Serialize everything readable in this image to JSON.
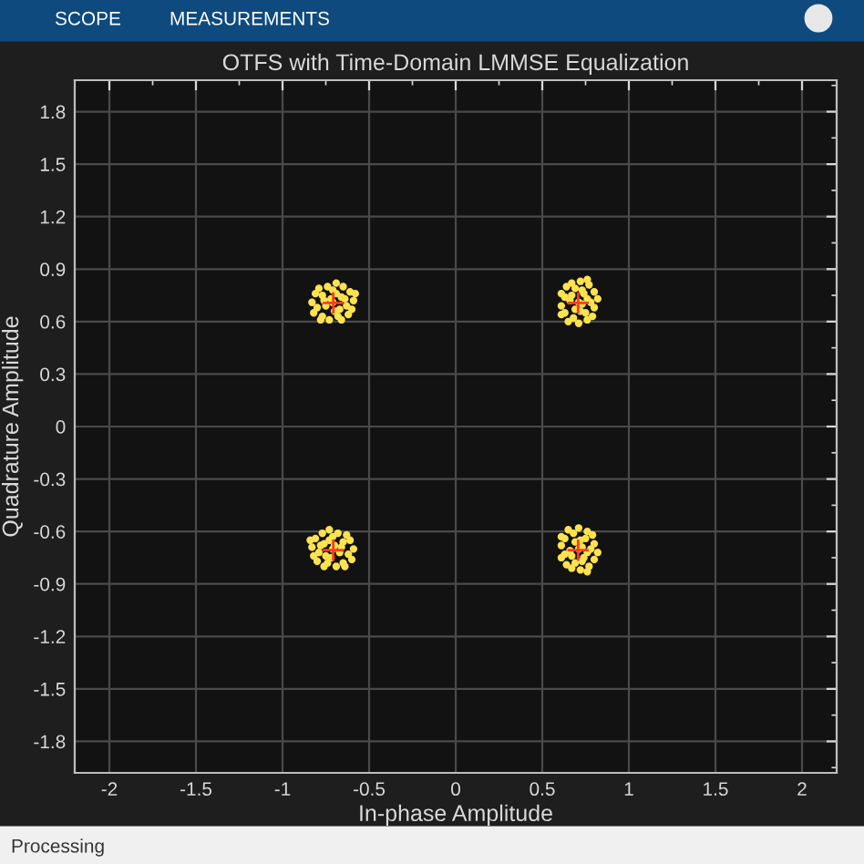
{
  "chart_data": {
    "type": "scatter",
    "title": "OTFS with Time-Domain LMMSE Equalization",
    "xlabel": "In-phase Amplitude",
    "ylabel": "Quadrature Amplitude",
    "annotations": [
      "SCOPE",
      "MEASUREMENTS",
      "Processing"
    ],
    "xlim": [
      -2.2,
      2.2
    ],
    "ylim": [
      -1.98,
      1.98
    ],
    "xticks": [
      -2,
      -1.5,
      -1,
      -0.5,
      0,
      0.5,
      1,
      1.5,
      2
    ],
    "yticks": [
      -1.8,
      -1.5,
      -1.2,
      -0.9,
      -0.6,
      -0.3,
      0,
      0.3,
      0.6,
      0.9,
      1.2,
      1.5,
      1.8
    ],
    "grid": true,
    "legend": false,
    "series": [
      {
        "color": "#fde24f",
        "marker": "circle",
        "x": [
          -0.71,
          -0.66,
          -0.77,
          -0.63,
          -0.8,
          -0.68,
          -0.74,
          -0.61,
          -0.81,
          -0.65,
          -0.77,
          -0.62,
          -0.73,
          -0.59,
          -0.83,
          -0.69,
          -0.67,
          -0.75,
          -0.69,
          -0.76,
          -0.64,
          -0.79,
          -0.66,
          -0.78,
          -0.6,
          -0.82,
          -0.71,
          -0.7,
          -0.72,
          -0.58,
          0.71,
          0.74,
          0.75,
          0.69,
          0.68,
          0.63,
          0.8,
          0.77,
          0.76,
          0.8,
          0.63,
          0.64,
          0.61,
          0.72,
          0.71,
          0.82,
          0.67,
          0.69,
          0.76,
          0.72,
          0.73,
          0.79,
          0.61,
          0.61,
          0.67,
          0.65,
          0.78,
          0.66,
          0.73,
          0.76,
          -0.71,
          -0.76,
          -0.65,
          -0.79,
          -0.62,
          -0.74,
          -0.68,
          -0.81,
          -0.61,
          -0.77,
          -0.65,
          -0.8,
          -0.69,
          -0.83,
          -0.59,
          -0.73,
          -0.75,
          -0.67,
          -0.73,
          -0.66,
          -0.78,
          -0.63,
          -0.76,
          -0.64,
          -0.82,
          -0.6,
          -0.71,
          -0.72,
          -0.7,
          -0.84,
          0.71,
          0.74,
          0.75,
          0.69,
          0.68,
          0.63,
          0.8,
          0.77,
          0.76,
          0.8,
          0.63,
          0.64,
          0.61,
          0.72,
          0.71,
          0.82,
          0.67,
          0.69,
          0.76,
          0.72,
          0.73,
          0.79,
          0.61,
          0.61,
          0.67,
          0.65,
          0.78,
          0.66,
          0.73,
          0.76
        ],
        "values": [
          0.71,
          0.74,
          0.75,
          0.69,
          0.68,
          0.63,
          0.8,
          0.77,
          0.76,
          0.8,
          0.63,
          0.64,
          0.61,
          0.72,
          0.71,
          0.82,
          0.67,
          0.69,
          0.76,
          0.72,
          0.73,
          0.79,
          0.61,
          0.61,
          0.67,
          0.65,
          0.78,
          0.66,
          0.73,
          0.76,
          0.71,
          0.76,
          0.65,
          0.79,
          0.62,
          0.74,
          0.68,
          0.81,
          0.61,
          0.77,
          0.65,
          0.8,
          0.69,
          0.83,
          0.59,
          0.73,
          0.75,
          0.67,
          0.73,
          0.66,
          0.78,
          0.63,
          0.76,
          0.64,
          0.82,
          0.6,
          0.71,
          0.72,
          0.7,
          0.84,
          -0.7,
          -0.67,
          -0.66,
          -0.72,
          -0.73,
          -0.78,
          -0.61,
          -0.64,
          -0.65,
          -0.61,
          -0.78,
          -0.77,
          -0.8,
          -0.69,
          -0.7,
          -0.59,
          -0.74,
          -0.72,
          -0.65,
          -0.69,
          -0.68,
          -0.62,
          -0.8,
          -0.8,
          -0.74,
          -0.76,
          -0.63,
          -0.75,
          -0.68,
          -0.65,
          -0.7,
          -0.75,
          -0.64,
          -0.78,
          -0.61,
          -0.73,
          -0.67,
          -0.8,
          -0.6,
          -0.76,
          -0.64,
          -0.79,
          -0.68,
          -0.82,
          -0.58,
          -0.72,
          -0.74,
          -0.66,
          -0.72,
          -0.65,
          -0.77,
          -0.62,
          -0.75,
          -0.63,
          -0.81,
          -0.59,
          -0.7,
          -0.71,
          -0.69,
          -0.83
        ]
      },
      {
        "color": "#ff3b1f",
        "marker": "cross",
        "x": [
          -0.707,
          0.707,
          -0.707,
          0.707
        ],
        "values": [
          0.707,
          0.707,
          -0.707,
          -0.707
        ]
      }
    ]
  }
}
